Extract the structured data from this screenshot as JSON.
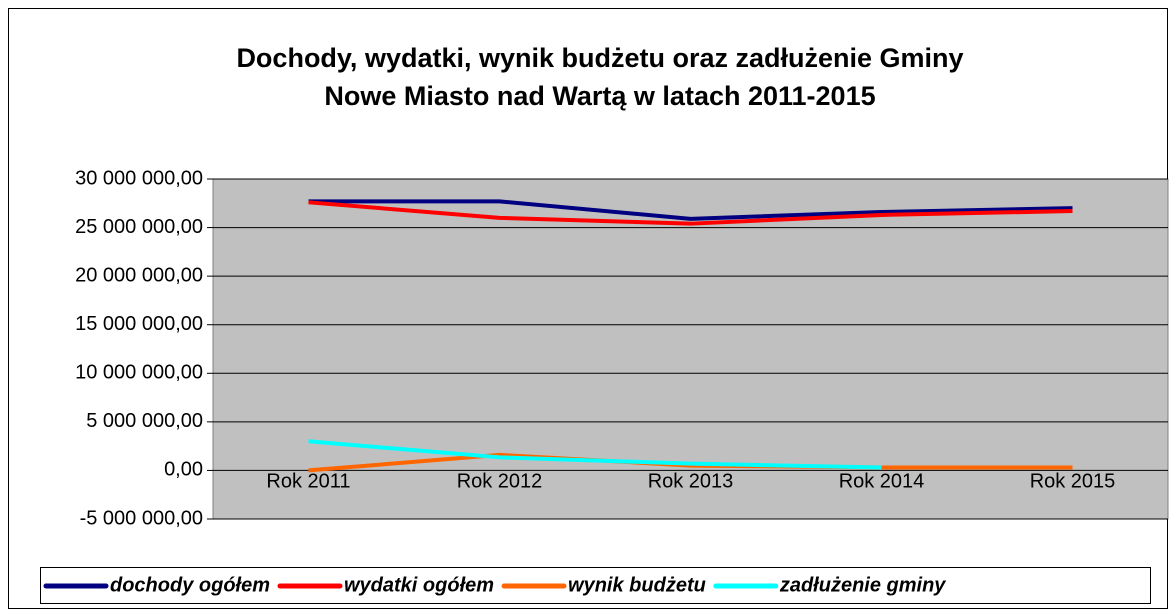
{
  "chart_data": {
    "type": "line",
    "title": [
      "Dochody, wydatki, wynik budżetu oraz zadłużenie Gminy",
      "Nowe Miasto nad Wartą w latach 2011-2015"
    ],
    "categories": [
      "Rok 2011",
      "Rok 2012",
      "Rok 2013",
      "Rok 2014",
      "Rok 2015"
    ],
    "series": [
      {
        "name": "dochody ogółem",
        "color": "#000080",
        "values": [
          27700000,
          27700000,
          25900000,
          26600000,
          27000000
        ]
      },
      {
        "name": "wydatki ogółem",
        "color": "#ff0000",
        "values": [
          27600000,
          26000000,
          25400000,
          26300000,
          26700000
        ]
      },
      {
        "name": "wynik budżetu",
        "color": "#ff6600",
        "values": [
          0,
          1600000,
          500000,
          300000,
          300000
        ]
      },
      {
        "name": "zadłużenie gminy",
        "color": "#00ffff",
        "values": [
          3000000,
          1350000,
          700000,
          300000,
          null
        ]
      }
    ],
    "ylim": [
      -5000000,
      30000000
    ],
    "yticks": [
      {
        "value": -5000000,
        "label": "-5 000 000,00"
      },
      {
        "value": 0,
        "label": "0,00"
      },
      {
        "value": 5000000,
        "label": "5 000 000,00"
      },
      {
        "value": 10000000,
        "label": "10 000 000,00"
      },
      {
        "value": 15000000,
        "label": "15 000 000,00"
      },
      {
        "value": 20000000,
        "label": "20 000 000,00"
      },
      {
        "value": 25000000,
        "label": "25 000 000,00"
      },
      {
        "value": 30000000,
        "label": "30 000 000,00"
      }
    ],
    "grid": true,
    "legend": "bottom"
  }
}
